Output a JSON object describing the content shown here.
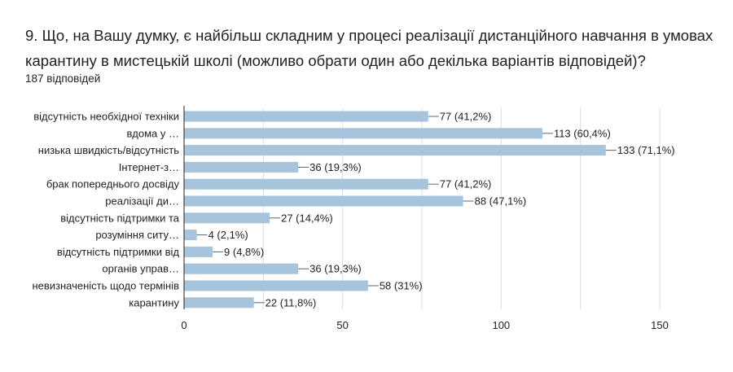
{
  "title": "9. Що, на Вашу думку, є найбільш складним у процесі реалізації дистанційного навчання в умовах карантину в мистецькій школі (можливо обрати один або декілька варіантів відповідей)?",
  "subtitle": "187 відповідей",
  "colors": {
    "bar": "#a6c4dc",
    "grid": "#dadce0",
    "axis": "#202124"
  },
  "chart_data": {
    "type": "bar",
    "orientation": "horizontal",
    "xlim": [
      0,
      150
    ],
    "xticks": [
      "0",
      "50",
      "100",
      "150"
    ],
    "grid": true,
    "category_labels": [
      [
        "відсутність необхідної техніки",
        "вдома у …"
      ],
      [
        "низька швидкість/відсутність",
        "Інтернет-з…"
      ],
      [
        "брак попереднього досвіду",
        "реалізації ди…"
      ],
      [
        "відсутність підтримки та",
        "розуміння ситу…"
      ],
      [
        "відсутність підтримки від",
        "органів управ…"
      ],
      [
        "невизначеність щодо термінів",
        "карантину"
      ]
    ],
    "values": [
      77,
      113,
      133,
      36,
      77,
      88,
      27,
      4,
      9,
      36,
      58,
      22
    ],
    "value_labels": [
      "77 (41,2%)",
      "113 (60,4%)",
      "133 (71,1%)",
      "36 (19,3%)",
      "77 (41,2%)",
      "88 (47,1%)",
      "27 (14,4%)",
      "4 (2,1%)",
      "9 (4,8%)",
      "36 (19,3%)",
      "58 (31%)",
      "22 (11,8%)"
    ]
  }
}
